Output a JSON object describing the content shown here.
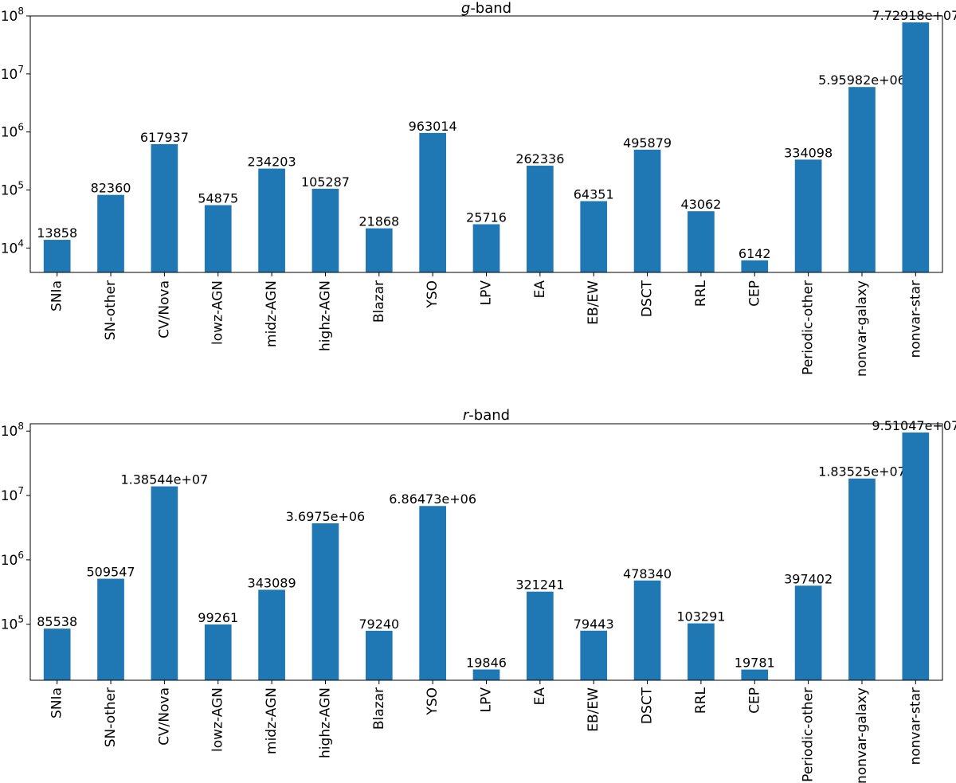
{
  "chart_data": [
    {
      "type": "bar",
      "title_italic": "g",
      "title_rest": "-band",
      "yscale": "log",
      "ylim": [
        3800,
        100000000
      ],
      "yticks": [
        {
          "value": 10000,
          "base": "10",
          "exp": "4"
        },
        {
          "value": 100000,
          "base": "10",
          "exp": "5"
        },
        {
          "value": 1000000,
          "base": "10",
          "exp": "6"
        },
        {
          "value": 10000000,
          "base": "10",
          "exp": "7"
        },
        {
          "value": 100000000,
          "base": "10",
          "exp": "8"
        }
      ],
      "categories": [
        "SNIa",
        "SN-other",
        "CV/Nova",
        "lowz-AGN",
        "midz-AGN",
        "highz-AGN",
        "Blazar",
        "YSO",
        "LPV",
        "EA",
        "EB/EW",
        "DSCT",
        "RRL",
        "CEP",
        "Periodic-other",
        "nonvar-galaxy",
        "nonvar-star"
      ],
      "values": [
        13858,
        82360,
        617937,
        54875,
        234203,
        105287,
        21868,
        963014,
        25716,
        262336,
        64351,
        495879,
        43062,
        6142,
        334098,
        5959820,
        77291800
      ],
      "value_labels": [
        "13858",
        "82360",
        "617937",
        "54875",
        "234203",
        "105287",
        "21868",
        "963014",
        "25716",
        "262336",
        "64351",
        "495879",
        "43062",
        "6142",
        "334098",
        "5.95982e+06",
        "7.72918e+07"
      ],
      "bar_color": "#1f77b4",
      "grid": false
    },
    {
      "type": "bar",
      "title_italic": "r",
      "title_rest": "-band",
      "yscale": "log",
      "ylim": [
        13500,
        130000000
      ],
      "yticks": [
        {
          "value": 100000,
          "base": "10",
          "exp": "5"
        },
        {
          "value": 1000000,
          "base": "10",
          "exp": "6"
        },
        {
          "value": 10000000,
          "base": "10",
          "exp": "7"
        },
        {
          "value": 100000000,
          "base": "10",
          "exp": "8"
        }
      ],
      "categories": [
        "SNIa",
        "SN-other",
        "CV/Nova",
        "lowz-AGN",
        "midz-AGN",
        "highz-AGN",
        "Blazar",
        "YSO",
        "LPV",
        "EA",
        "EB/EW",
        "DSCT",
        "RRL",
        "CEP",
        "Periodic-other",
        "nonvar-galaxy",
        "nonvar-star"
      ],
      "values": [
        85538,
        509547,
        13854400,
        99261,
        343089,
        3697500,
        79240,
        6864730,
        19846,
        321241,
        79443,
        478340,
        103291,
        19781,
        397402,
        18352500,
        95104700
      ],
      "value_labels": [
        "85538",
        "509547",
        "1.38544e+07",
        "99261",
        "343089",
        "3.6975e+06",
        "79240",
        "6.86473e+06",
        "19846",
        "321241",
        "79443",
        "478340",
        "103291",
        "19781",
        "397402",
        "1.83525e+07",
        "9.51047e+07"
      ],
      "bar_color": "#1f77b4",
      "grid": false
    }
  ]
}
